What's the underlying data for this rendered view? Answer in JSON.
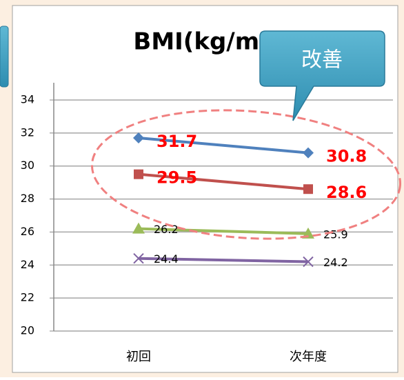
{
  "chart_data": {
    "type": "line",
    "title": "BMI(kg/m²)",
    "categories": [
      "初回",
      "次年度"
    ],
    "series": [
      {
        "color": "#4f81bd",
        "marker": "diamond",
        "values": [
          31.7,
          30.8
        ],
        "label_color": "#ff0000",
        "label_bold": true
      },
      {
        "color": "#c0504d",
        "marker": "square",
        "values": [
          29.5,
          28.6
        ],
        "label_color": "#ff0000",
        "label_bold": true
      },
      {
        "color": "#9bbb59",
        "marker": "triangle",
        "values": [
          26.2,
          25.9
        ],
        "label_color": "#000000",
        "label_bold": false
      },
      {
        "color": "#8064a2",
        "marker": "x",
        "values": [
          24.4,
          24.2
        ],
        "label_color": "#000000",
        "label_bold": false
      }
    ],
    "ylim": [
      20,
      34
    ],
    "yticks": [
      20,
      22,
      24,
      26,
      28,
      30,
      32,
      34
    ],
    "grid": true,
    "annotations": [
      "改善"
    ]
  }
}
